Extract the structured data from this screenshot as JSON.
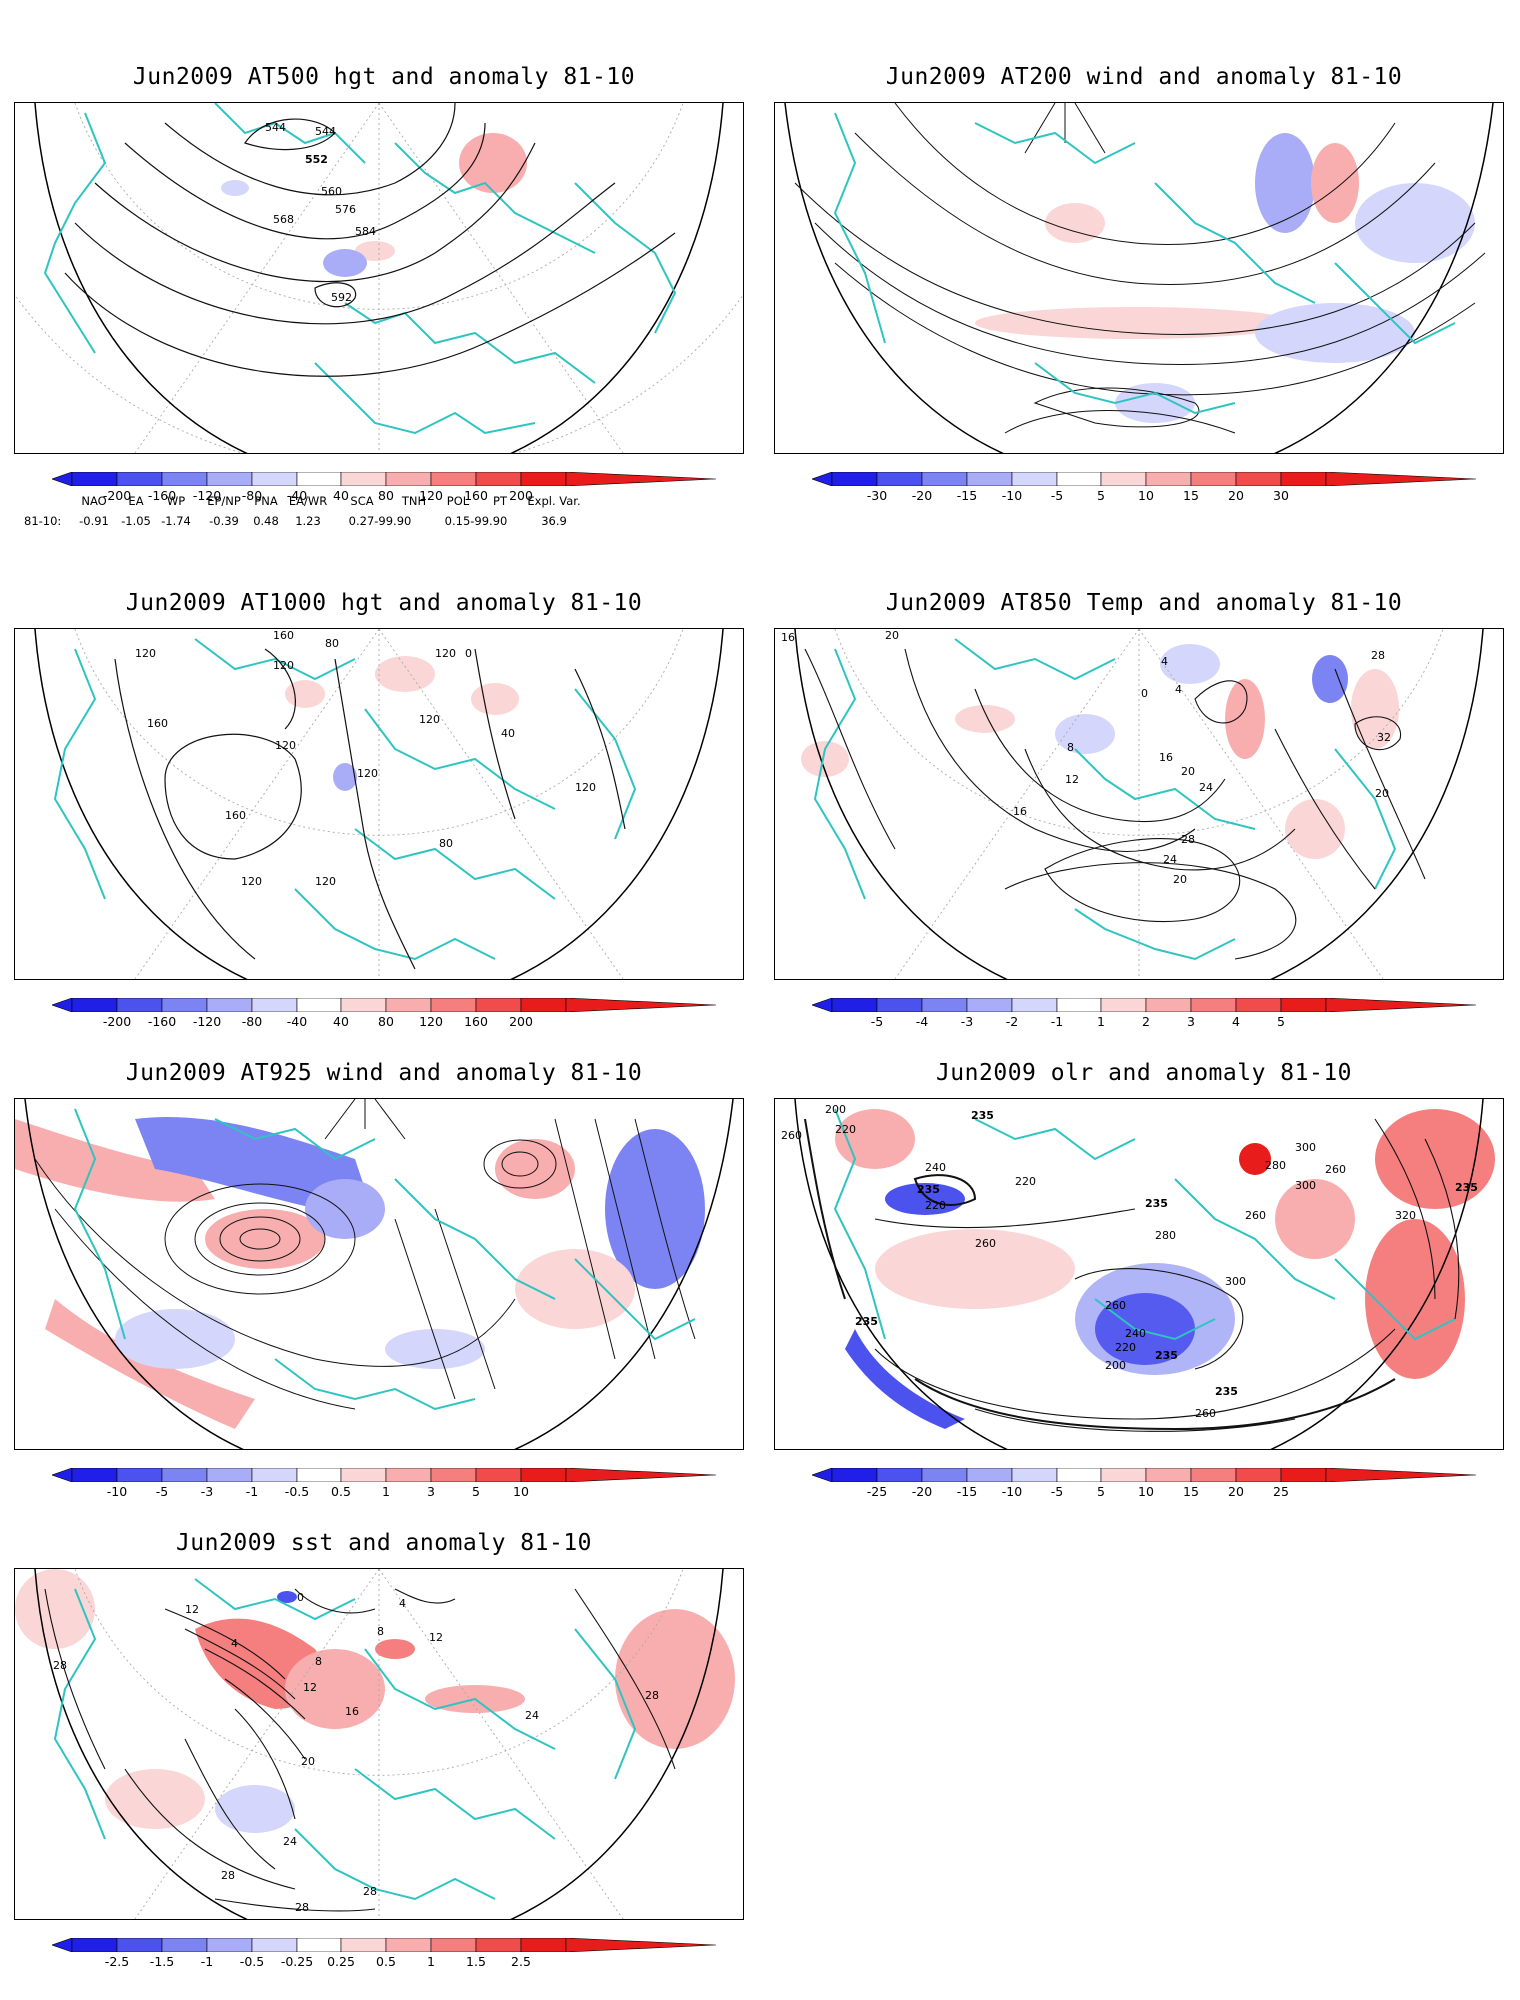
{
  "colors": {
    "neg": [
      "#1f1fe8",
      "#4b52ee",
      "#7c84f4",
      "#a9adf7",
      "#d4d6fb"
    ],
    "pos": [
      "#fbd6d6",
      "#f8aeae",
      "#f57f7f",
      "#f04c4c",
      "#e91c1c"
    ],
    "coast": "#2ec4c1",
    "contour": "#111111"
  },
  "panels": [
    {
      "id": "at500",
      "title": "Jun2009 AT500 hgt and anomaly 81-10",
      "colorbar_ticks": [
        "-200",
        "-160",
        "-120",
        "-80",
        "-40",
        "40",
        "80",
        "120",
        "160",
        "200"
      ],
      "contour_labels": [
        "544",
        "544",
        "552",
        "560",
        "568",
        "576",
        "584",
        "592"
      ]
    },
    {
      "id": "at200",
      "title": "Jun2009 AT200 wind and anomaly 81-10",
      "colorbar_ticks": [
        "-30",
        "-20",
        "-15",
        "-10",
        "-5",
        "5",
        "10",
        "15",
        "20",
        "30"
      ],
      "contour_labels": []
    },
    {
      "id": "at1000",
      "title": "Jun2009 AT1000 hgt and anomaly 81-10",
      "colorbar_ticks": [
        "-200",
        "-160",
        "-120",
        "-80",
        "-40",
        "40",
        "80",
        "120",
        "160",
        "200"
      ],
      "contour_labels": [
        "120",
        "160",
        "120",
        "80",
        "120",
        "0",
        "160",
        "120",
        "120",
        "40",
        "120",
        "160",
        "120",
        "80",
        "120",
        "120"
      ]
    },
    {
      "id": "at850",
      "title": "Jun2009 AT850 Temp and anomaly 81-10",
      "colorbar_ticks": [
        "-5",
        "-4",
        "-3",
        "-2",
        "-1",
        "1",
        "2",
        "3",
        "4",
        "5"
      ],
      "contour_labels": [
        "16",
        "20",
        "4",
        "4",
        "0",
        "28",
        "8",
        "16",
        "32",
        "12",
        "20",
        "24",
        "16",
        "28",
        "20",
        "24",
        "20"
      ]
    },
    {
      "id": "at925",
      "title": "Jun2009 AT925 wind and anomaly 81-10",
      "colorbar_ticks": [
        "-10",
        "-5",
        "-3",
        "-1",
        "-0.5",
        "0.5",
        "1",
        "3",
        "5",
        "10"
      ],
      "contour_labels": []
    },
    {
      "id": "olr",
      "title": "Jun2009 olr and anomaly 81-10",
      "colorbar_ticks": [
        "-25",
        "-20",
        "-15",
        "-10",
        "-5",
        "5",
        "10",
        "15",
        "20",
        "25"
      ],
      "contour_labels": [
        "200",
        "235",
        "220",
        "260",
        "240",
        "235",
        "220",
        "220",
        "235",
        "280",
        "300",
        "260",
        "260",
        "300",
        "320",
        "235",
        "260",
        "280",
        "300",
        "260",
        "240",
        "235",
        "220",
        "200",
        "235",
        "260",
        "235"
      ]
    },
    {
      "id": "sst",
      "title": "Jun2009 sst and anomaly 81-10",
      "colorbar_ticks": [
        "-2.5",
        "-1.5",
        "-1",
        "-0.5",
        "-0.25",
        "0.25",
        "0.5",
        "1",
        "1.5",
        "2.5"
      ],
      "contour_labels": [
        "28",
        "12",
        "4",
        "8",
        "12",
        "16",
        "20",
        "24",
        "28",
        "28",
        "28",
        "28",
        "24",
        "12",
        "8",
        "4",
        "0"
      ]
    }
  ],
  "indices": {
    "row_label": "81-10:",
    "names": [
      "NAO",
      "EA",
      "WP",
      "EP/NP",
      "PNA",
      "EA/WR",
      "SCA",
      "TNH",
      "POL",
      "PT",
      "Expl. Var."
    ],
    "values": [
      "-0.91",
      "-1.05",
      "-1.74",
      "-0.39",
      "0.48",
      "1.23",
      "0.27-99.90",
      "",
      "0.15-99.90",
      "",
      "36.9"
    ]
  }
}
